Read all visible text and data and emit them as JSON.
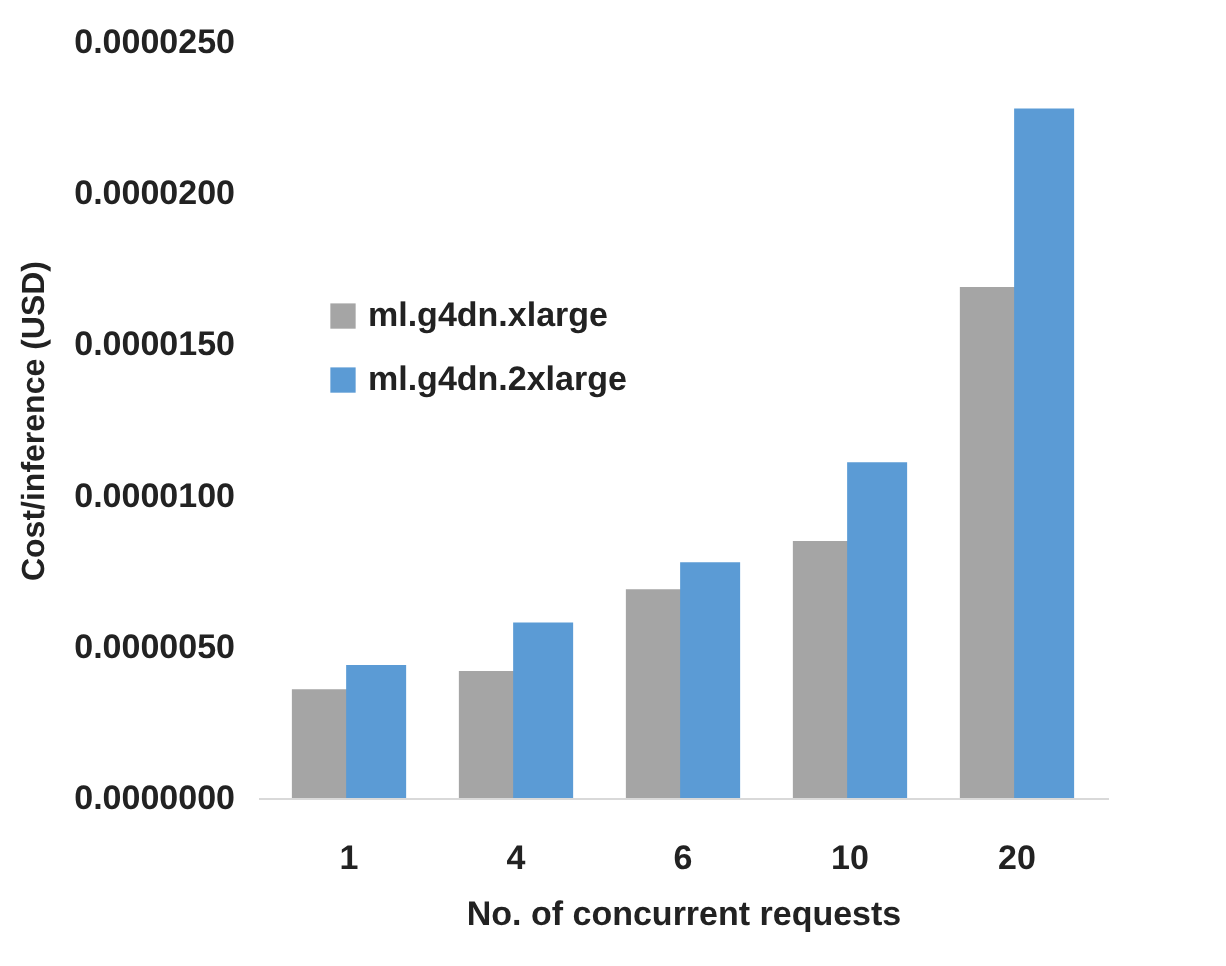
{
  "chart_data": {
    "type": "bar",
    "xlabel": "No. of concurrent requests",
    "ylabel": "Cost/inference (USD)",
    "categories": [
      "1",
      "4",
      "6",
      "10",
      "20"
    ],
    "series": [
      {
        "name": "ml.g4dn.xlarge",
        "color": "#a5a5a5",
        "values": [
          3.6e-06,
          4.2e-06,
          6.9e-06,
          8.5e-06,
          1.69e-05
        ]
      },
      {
        "name": "ml.g4dn.2xlarge",
        "color": "#5b9bd5",
        "values": [
          4.4e-06,
          5.8e-06,
          7.8e-06,
          1.11e-05,
          2.28e-05
        ]
      }
    ],
    "ylim": [
      0,
      2.5e-05
    ],
    "yticks": [
      {
        "value": 0,
        "label": "0.0000000"
      },
      {
        "value": 5e-06,
        "label": "0.0000050"
      },
      {
        "value": 1e-05,
        "label": "0.0000100"
      },
      {
        "value": 1.5e-05,
        "label": "0.0000150"
      },
      {
        "value": 2e-05,
        "label": "0.0000200"
      },
      {
        "value": 2.5e-05,
        "label": "0.0000250"
      }
    ],
    "grid": false,
    "legend": "left"
  }
}
